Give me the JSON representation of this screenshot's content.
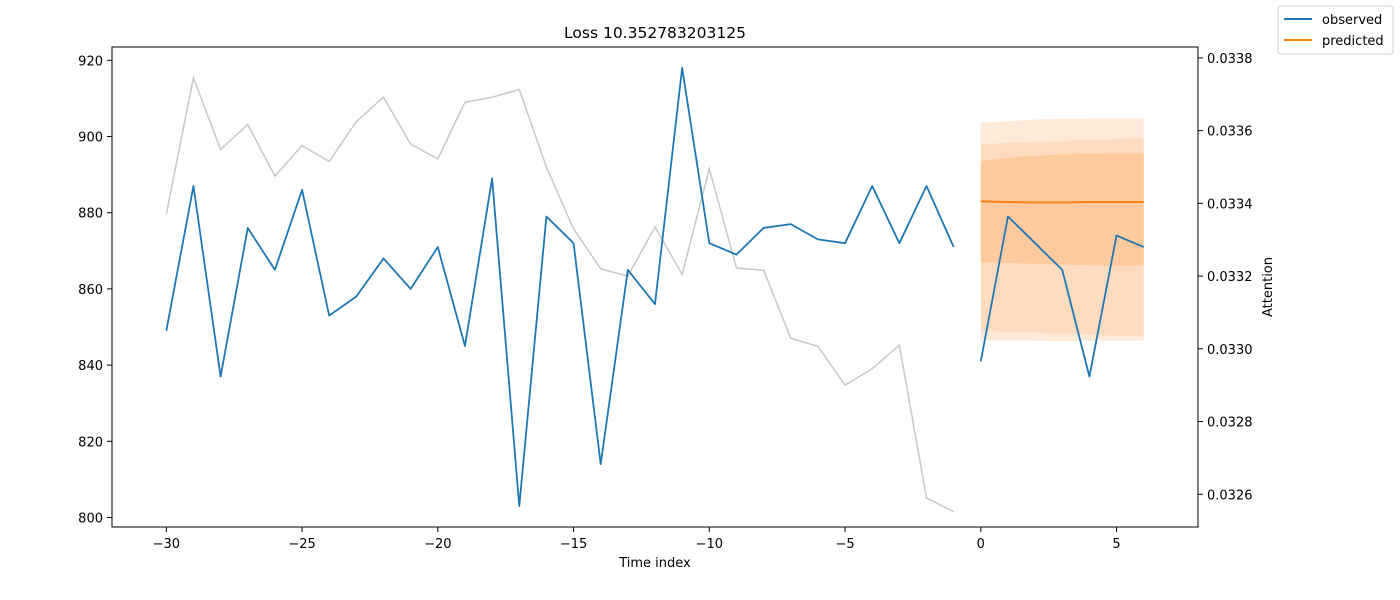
{
  "chart_data": {
    "type": "line",
    "title": "Loss 10.352783203125",
    "xlabel": "Time index",
    "ylabel": "",
    "y2label": "Attention",
    "xlim": [
      -32,
      8
    ],
    "ylim": [
      797.5,
      923.5
    ],
    "y2lim": [
      0.03251,
      0.03383
    ],
    "xticks": [
      -30,
      -25,
      -20,
      -15,
      -10,
      -5,
      0,
      5
    ],
    "yticks": [
      800,
      820,
      840,
      860,
      880,
      900,
      920
    ],
    "y2ticks": [
      0.0326,
      0.0328,
      0.033,
      0.0332,
      0.0334,
      0.0336,
      0.0338
    ],
    "legend_position": "top-right (outside)",
    "series": [
      {
        "name": "observed",
        "color": "#1f77b4",
        "x": [
          -30,
          -29,
          -28,
          -27,
          -26,
          -25,
          -24,
          -23,
          -22,
          -21,
          -20,
          -19,
          -18,
          -17,
          -16,
          -15,
          -14,
          -13,
          -12,
          -11,
          -10,
          -9,
          -8,
          -7,
          -6,
          -5,
          -4,
          -3,
          -2,
          -1
        ],
        "y": [
          849,
          887,
          837,
          876,
          865,
          886,
          853,
          858,
          868,
          860,
          871,
          845,
          889,
          803,
          879,
          872,
          814,
          865,
          856,
          918,
          872,
          869,
          876,
          877,
          873,
          872,
          887,
          872,
          887,
          871
        ]
      },
      {
        "name": "observed",
        "color": "#1f77b4",
        "x": [
          0,
          1,
          2,
          3,
          4,
          5,
          6
        ],
        "y": [
          841,
          879,
          872,
          865,
          837,
          874,
          871
        ]
      },
      {
        "name": "predicted",
        "color": "#ff7f0e",
        "x": [
          0,
          1,
          2,
          3,
          4,
          5,
          6
        ],
        "y": [
          883.0,
          882.8,
          882.7,
          882.7,
          882.8,
          882.8,
          882.8
        ]
      }
    ],
    "prediction_bands": [
      {
        "color": "#ffe9d9",
        "lower": [
          846.5,
          846.5,
          846.4,
          846.3,
          846.4,
          846.4,
          846.5
        ],
        "upper": [
          903.6,
          904.0,
          904.5,
          904.6,
          904.7,
          904.7,
          904.7
        ]
      },
      {
        "color": "#ffdcbf",
        "lower": [
          849.0,
          848.8,
          848.6,
          848.3,
          848.0,
          847.7,
          847.5
        ],
        "upper": [
          898.0,
          898.3,
          898.6,
          898.8,
          899.1,
          899.3,
          899.5
        ]
      },
      {
        "color": "#ffca9e",
        "lower": [
          867.0,
          866.8,
          866.6,
          866.4,
          866.2,
          866.0,
          866.0
        ],
        "upper": [
          893.5,
          894.5,
          895.0,
          895.3,
          895.5,
          895.6,
          895.6
        ]
      }
    ],
    "attention": {
      "color": "#c8c8c8",
      "x": [
        -30,
        -29,
        -28,
        -27,
        -26,
        -25,
        -24,
        -23,
        -22,
        -21,
        -20,
        -19,
        -18,
        -17,
        -16,
        -15,
        -14,
        -13,
        -12,
        -11,
        -10,
        -9,
        -8,
        -7,
        -6,
        -5,
        -4,
        -3,
        -2,
        -1
      ],
      "y": [
        0.03337,
        0.033745,
        0.033548,
        0.033617,
        0.033475,
        0.033559,
        0.033515,
        0.033625,
        0.033692,
        0.033563,
        0.033522,
        0.033678,
        0.033692,
        0.033713,
        0.0335,
        0.03333,
        0.03322,
        0.0332,
        0.033335,
        0.033205,
        0.033495,
        0.033222,
        0.033216,
        0.033029,
        0.033007,
        0.0329,
        0.032945,
        0.03301,
        0.03259,
        0.032552
      ]
    }
  }
}
